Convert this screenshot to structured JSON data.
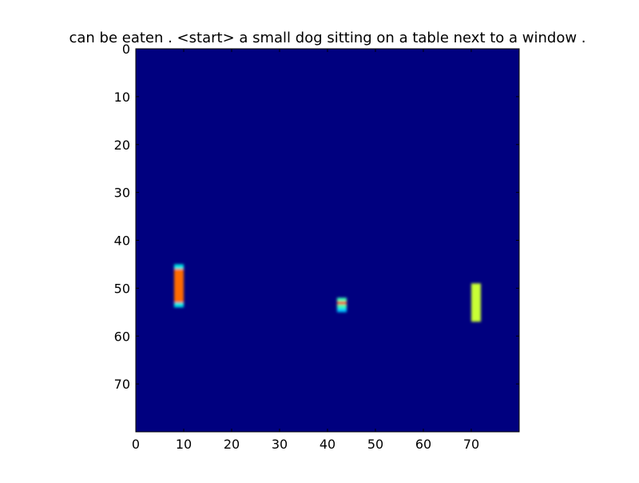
{
  "chart_data": {
    "type": "heatmap",
    "title": "can be eaten . <start> a small dog sitting on a table next to a window .",
    "xlabel": "",
    "ylabel": "",
    "xlim": [
      0,
      80
    ],
    "ylim": [
      80,
      0
    ],
    "x_ticks": [
      0,
      10,
      20,
      30,
      40,
      50,
      60,
      70
    ],
    "y_ticks": [
      0,
      10,
      20,
      30,
      40,
      50,
      60,
      70
    ],
    "grid": false,
    "colormap": "jet",
    "background_color": "#00007f",
    "blobs": [
      {
        "x_range": [
          8,
          10
        ],
        "y_range": [
          45,
          54
        ],
        "layers": [
          {
            "y_range": [
              45,
              46
            ],
            "color": "#00e5e5"
          },
          {
            "y_range": [
              46,
              53
            ],
            "color": "#ff6a00"
          },
          {
            "y_range": [
              53,
              54
            ],
            "color": "#00e5e5"
          }
        ]
      },
      {
        "x_range": [
          42,
          44
        ],
        "y_range": [
          52,
          55
        ],
        "layers": [
          {
            "y_range": [
              52,
              52.8
            ],
            "color": "#40ffb0"
          },
          {
            "y_range": [
              52.8,
              53.4
            ],
            "color": "#ff3000"
          },
          {
            "y_range": [
              53.4,
              54.2
            ],
            "color": "#40ffb0"
          },
          {
            "y_range": [
              54.2,
              55
            ],
            "color": "#00c8ff"
          }
        ]
      },
      {
        "x_range": [
          70,
          72
        ],
        "y_range": [
          49,
          57
        ],
        "layers": [
          {
            "y_range": [
              49,
              57
            ],
            "color": "#c8ff36"
          }
        ]
      }
    ]
  }
}
